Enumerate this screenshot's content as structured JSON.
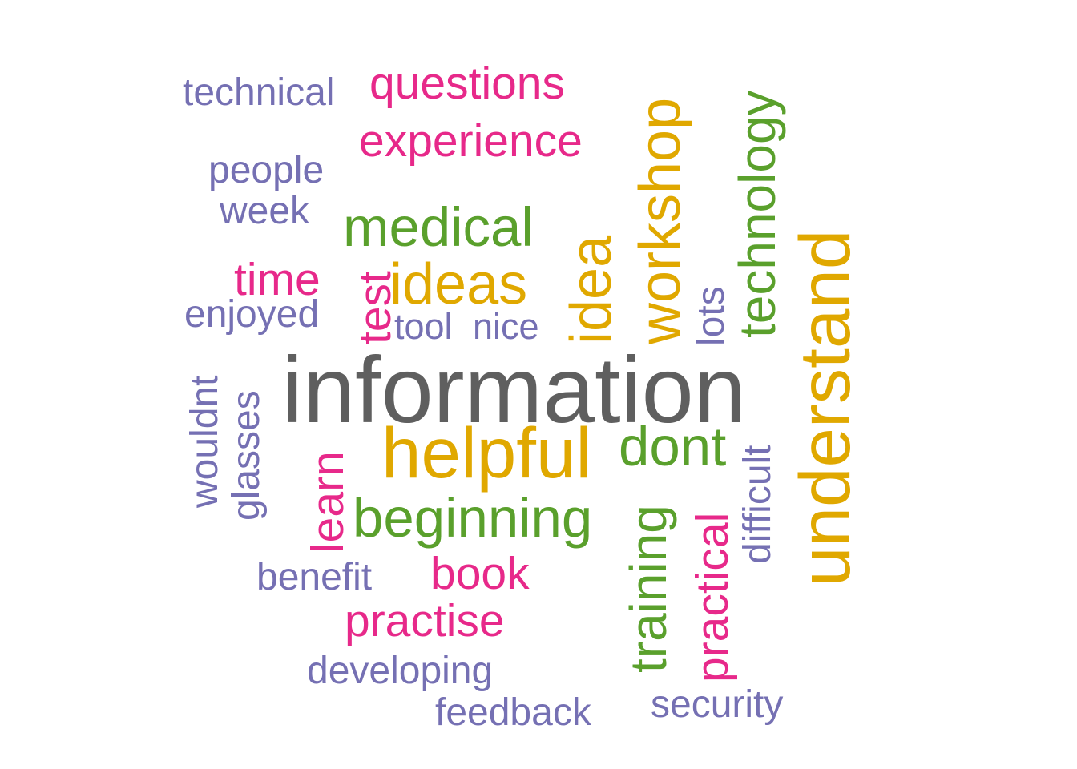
{
  "colors": {
    "dominant": "#5f5f5f",
    "gold": "#e0a800",
    "green": "#5aa02c",
    "pink": "#e7298a",
    "purple": "#7570b3"
  },
  "words": {
    "information": {
      "text": "information",
      "color": "#5f5f5f"
    },
    "helpful": {
      "text": "helpful",
      "color": "#e0a800"
    },
    "understand": {
      "text": "understand",
      "color": "#e0a800"
    },
    "workshop": {
      "text": "workshop",
      "color": "#e0a800"
    },
    "idea": {
      "text": "idea",
      "color": "#e0a800"
    },
    "ideas": {
      "text": "ideas",
      "color": "#e0a800"
    },
    "technology": {
      "text": "technology",
      "color": "#5aa02c"
    },
    "medical": {
      "text": "medical",
      "color": "#5aa02c"
    },
    "beginning": {
      "text": "beginning",
      "color": "#5aa02c"
    },
    "dont": {
      "text": "dont",
      "color": "#5aa02c"
    },
    "training": {
      "text": "training",
      "color": "#5aa02c"
    },
    "questions": {
      "text": "questions",
      "color": "#e7298a"
    },
    "experience": {
      "text": "experience",
      "color": "#e7298a"
    },
    "time": {
      "text": "time",
      "color": "#e7298a"
    },
    "test": {
      "text": "test",
      "color": "#e7298a"
    },
    "learn": {
      "text": "learn",
      "color": "#e7298a"
    },
    "book": {
      "text": "book",
      "color": "#e7298a"
    },
    "practise": {
      "text": "practise",
      "color": "#e7298a"
    },
    "practical": {
      "text": "practical",
      "color": "#e7298a"
    },
    "technical": {
      "text": "technical",
      "color": "#7570b3"
    },
    "people": {
      "text": "people",
      "color": "#7570b3"
    },
    "week": {
      "text": "week",
      "color": "#7570b3"
    },
    "enjoyed": {
      "text": "enjoyed",
      "color": "#7570b3"
    },
    "tool": {
      "text": "tool",
      "color": "#7570b3"
    },
    "nice": {
      "text": "nice",
      "color": "#7570b3"
    },
    "lots": {
      "text": "lots",
      "color": "#7570b3"
    },
    "difficult": {
      "text": "difficult",
      "color": "#7570b3"
    },
    "wouldnt": {
      "text": "wouldnt",
      "color": "#7570b3"
    },
    "glasses": {
      "text": "glasses",
      "color": "#7570b3"
    },
    "benefit": {
      "text": "benefit",
      "color": "#7570b3"
    },
    "developing": {
      "text": "developing",
      "color": "#7570b3"
    },
    "feedback": {
      "text": "feedback",
      "color": "#7570b3"
    },
    "security": {
      "text": "security",
      "color": "#7570b3"
    }
  }
}
